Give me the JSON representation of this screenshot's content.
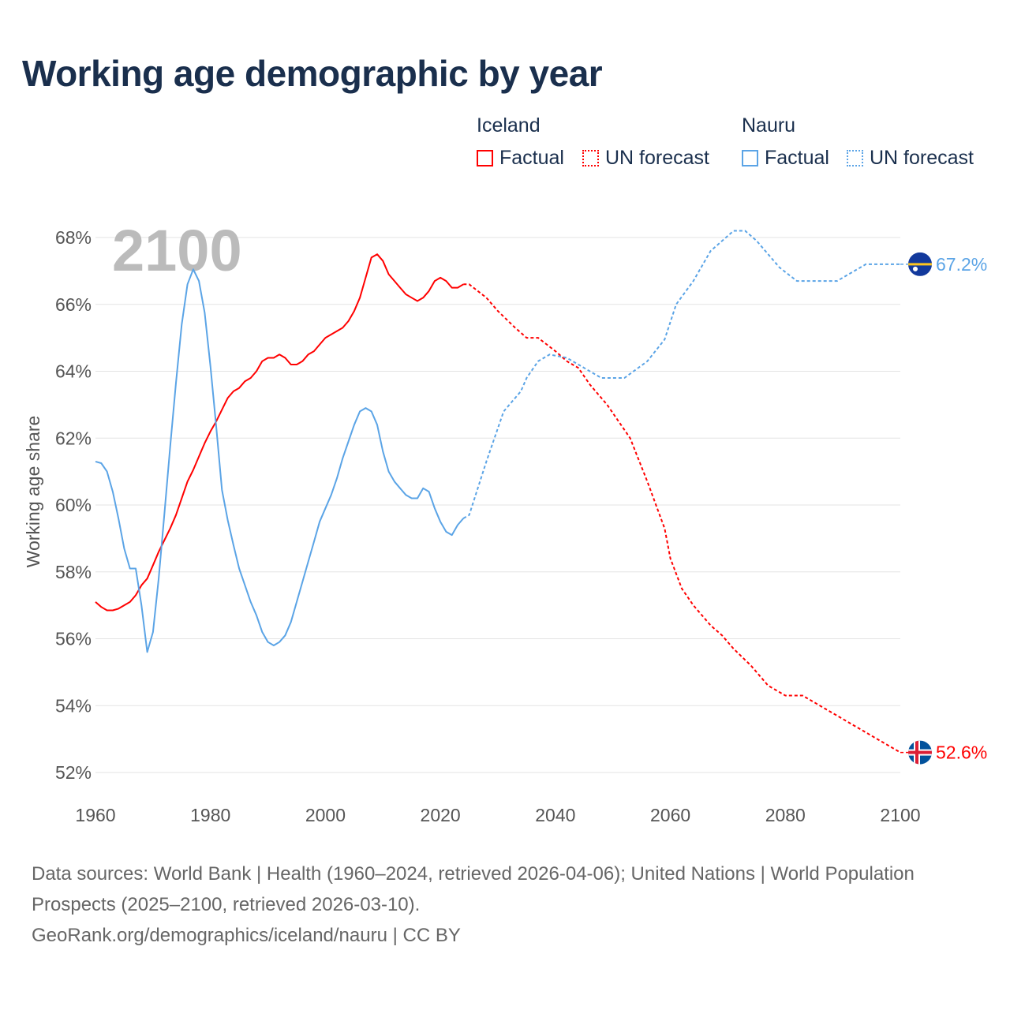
{
  "title": "Working age demographic by year",
  "legend": {
    "groups": [
      {
        "name": "Iceland",
        "factual": "Factual",
        "forecast": "UN forecast"
      },
      {
        "name": "Nauru",
        "factual": "Factual",
        "forecast": "UN forecast"
      }
    ]
  },
  "footer": {
    "line1": "Data sources: World Bank | Health (1960–2024, retrieved 2026-04-06); United Nations | World Population Prospects (2025–2100, retrieved 2026-03-10).",
    "line2": "GeoRank.org/demographics/iceland/nauru | CC BY"
  },
  "chart_data": {
    "type": "line",
    "title": "Working age demographic by year",
    "year_label": "2100",
    "xlabel": "",
    "ylabel": "Working age share",
    "xlim": [
      1960,
      2100
    ],
    "ylim": [
      52,
      68
    ],
    "xticks": [
      "1960",
      "1980",
      "2000",
      "2020",
      "2040",
      "2060",
      "2080",
      "2100"
    ],
    "yticks": [
      "52%",
      "54%",
      "56%",
      "58%",
      "60%",
      "62%",
      "64%",
      "66%",
      "68%"
    ],
    "grid": true,
    "legend_position": "top-right",
    "series": [
      {
        "name": "Iceland",
        "color": "#ff0000",
        "end_label": "52.6%",
        "factual": {
          "x": [
            1960,
            1961,
            1962,
            1963,
            1964,
            1965,
            1966,
            1967,
            1968,
            1969,
            1970,
            1971,
            1972,
            1973,
            1974,
            1975,
            1976,
            1977,
            1978,
            1979,
            1980,
            1981,
            1982,
            1983,
            1984,
            1985,
            1986,
            1987,
            1988,
            1989,
            1990,
            1991,
            1992,
            1993,
            1994,
            1995,
            1996,
            1997,
            1998,
            1999,
            2000,
            2001,
            2002,
            2003,
            2004,
            2005,
            2006,
            2007,
            2008,
            2009,
            2010,
            2011,
            2012,
            2013,
            2014,
            2015,
            2016,
            2017,
            2018,
            2019,
            2020,
            2021,
            2022,
            2023,
            2024
          ],
          "y": [
            57.1,
            56.95,
            56.85,
            56.85,
            56.9,
            57.0,
            57.1,
            57.3,
            57.6,
            57.8,
            58.2,
            58.6,
            58.95,
            59.3,
            59.7,
            60.2,
            60.7,
            61.05,
            61.45,
            61.85,
            62.2,
            62.5,
            62.85,
            63.2,
            63.4,
            63.5,
            63.7,
            63.8,
            64.0,
            64.3,
            64.4,
            64.4,
            64.5,
            64.4,
            64.2,
            64.2,
            64.3,
            64.5,
            64.6,
            64.8,
            65.0,
            65.1,
            65.2,
            65.3,
            65.5,
            65.8,
            66.2,
            66.8,
            67.4,
            67.5,
            67.3,
            66.9,
            66.7,
            66.5,
            66.3,
            66.2,
            66.1,
            66.2,
            66.4,
            66.7,
            66.8,
            66.7,
            66.5,
            66.5,
            66.6
          ]
        },
        "forecast": {
          "x": [
            2024,
            2025,
            2028,
            2030,
            2033,
            2035,
            2037,
            2040,
            2042,
            2044,
            2046,
            2049,
            2053,
            2056,
            2059,
            2060,
            2062,
            2064,
            2067,
            2069,
            2071,
            2074,
            2077,
            2080,
            2083,
            2087,
            2092,
            2097,
            2098,
            2100
          ],
          "y": [
            66.6,
            66.6,
            66.2,
            65.8,
            65.3,
            65.0,
            65.0,
            64.6,
            64.3,
            64.1,
            63.6,
            63.0,
            62.0,
            60.7,
            59.3,
            58.4,
            57.5,
            57.0,
            56.4,
            56.1,
            55.7,
            55.2,
            54.6,
            54.3,
            54.3,
            53.9,
            53.4,
            52.9,
            52.8,
            52.6
          ]
        }
      },
      {
        "name": "Nauru",
        "color": "#5ba4e6",
        "end_label": "67.2%",
        "factual": {
          "x": [
            1960,
            1961,
            1962,
            1963,
            1964,
            1965,
            1966,
            1967,
            1968,
            1969,
            1970,
            1971,
            1972,
            1973,
            1974,
            1975,
            1976,
            1977,
            1978,
            1979,
            1980,
            1981,
            1982,
            1983,
            1984,
            1985,
            1986,
            1987,
            1988,
            1989,
            1990,
            1991,
            1992,
            1993,
            1994,
            1995,
            1996,
            1997,
            1998,
            1999,
            2000,
            2001,
            2002,
            2003,
            2004,
            2005,
            2006,
            2007,
            2008,
            2009,
            2010,
            2011,
            2012,
            2013,
            2014,
            2015,
            2016,
            2017,
            2018,
            2019,
            2020,
            2021,
            2022,
            2023,
            2024
          ],
          "y": [
            61.3,
            61.25,
            61.0,
            60.4,
            59.6,
            58.7,
            58.1,
            58.1,
            57.0,
            55.6,
            56.2,
            57.8,
            59.75,
            61.75,
            63.65,
            65.4,
            66.6,
            67.05,
            66.7,
            65.75,
            64.15,
            62.35,
            60.45,
            59.55,
            58.8,
            58.1,
            57.6,
            57.1,
            56.7,
            56.2,
            55.9,
            55.8,
            55.9,
            56.1,
            56.5,
            57.1,
            57.7,
            58.3,
            58.9,
            59.5,
            59.9,
            60.3,
            60.8,
            61.4,
            61.9,
            62.4,
            62.8,
            62.9,
            62.8,
            62.4,
            61.6,
            61.0,
            60.7,
            60.5,
            60.3,
            60.2,
            60.2,
            60.5,
            60.4,
            59.9,
            59.5,
            59.2,
            59.1,
            59.4,
            59.6
          ]
        },
        "forecast": {
          "x": [
            2024,
            2025,
            2028,
            2031,
            2034,
            2035,
            2037,
            2039,
            2042,
            2048,
            2052,
            2056,
            2059,
            2061,
            2064,
            2067,
            2071,
            2073,
            2075,
            2079,
            2082,
            2089,
            2092,
            2094,
            2100
          ],
          "y": [
            59.6,
            59.7,
            61.3,
            62.8,
            63.4,
            63.8,
            64.3,
            64.5,
            64.4,
            63.8,
            63.8,
            64.3,
            64.95,
            66.0,
            66.7,
            67.6,
            68.2,
            68.2,
            67.9,
            67.1,
            66.7,
            66.7,
            67.0,
            67.2,
            67.2
          ]
        }
      }
    ]
  }
}
